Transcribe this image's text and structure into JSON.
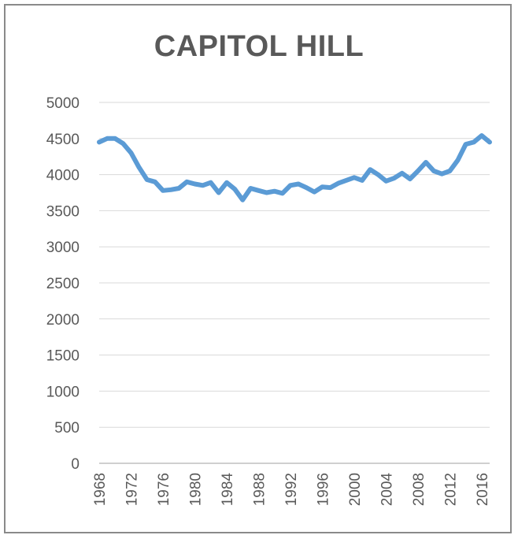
{
  "chart_data": {
    "type": "line",
    "title": "CAPITOL HILL",
    "xlabel": "",
    "ylabel": "",
    "ylim": [
      0,
      5000
    ],
    "y_ticks": [
      0,
      500,
      1000,
      1500,
      2000,
      2500,
      3000,
      3500,
      4000,
      4500,
      5000
    ],
    "x_ticks": [
      "1968",
      "1972",
      "1976",
      "1980",
      "1984",
      "1988",
      "1992",
      "1996",
      "2000",
      "2004",
      "2008",
      "2012",
      "2016"
    ],
    "grid": true,
    "legend": "none",
    "line_color": "#5b9bd5",
    "series": [
      {
        "x": [
          1968,
          1969,
          1970,
          1971,
          1972,
          1973,
          1974,
          1975,
          1976,
          1977,
          1978,
          1979,
          1980,
          1981,
          1982,
          1983,
          1984,
          1985,
          1986,
          1987,
          1988,
          1989,
          1990,
          1991,
          1992,
          1993,
          1994,
          1995,
          1996,
          1997,
          1998,
          1999,
          2000,
          2001,
          2002,
          2003,
          2004,
          2005,
          2006,
          2007,
          2008,
          2009,
          2010,
          2011,
          2012,
          2013,
          2014,
          2015,
          2016,
          2017
        ],
        "values": [
          4450,
          4500,
          4500,
          4430,
          4300,
          4100,
          3930,
          3900,
          3780,
          3790,
          3810,
          3900,
          3870,
          3850,
          3890,
          3750,
          3890,
          3800,
          3650,
          3810,
          3780,
          3750,
          3770,
          3740,
          3850,
          3870,
          3820,
          3760,
          3830,
          3820,
          3880,
          3920,
          3960,
          3920,
          4070,
          4000,
          3910,
          3950,
          4020,
          3940,
          4050,
          4170,
          4050,
          4010,
          4050,
          4200,
          4420,
          4450,
          4540,
          4450
        ]
      }
    ]
  }
}
